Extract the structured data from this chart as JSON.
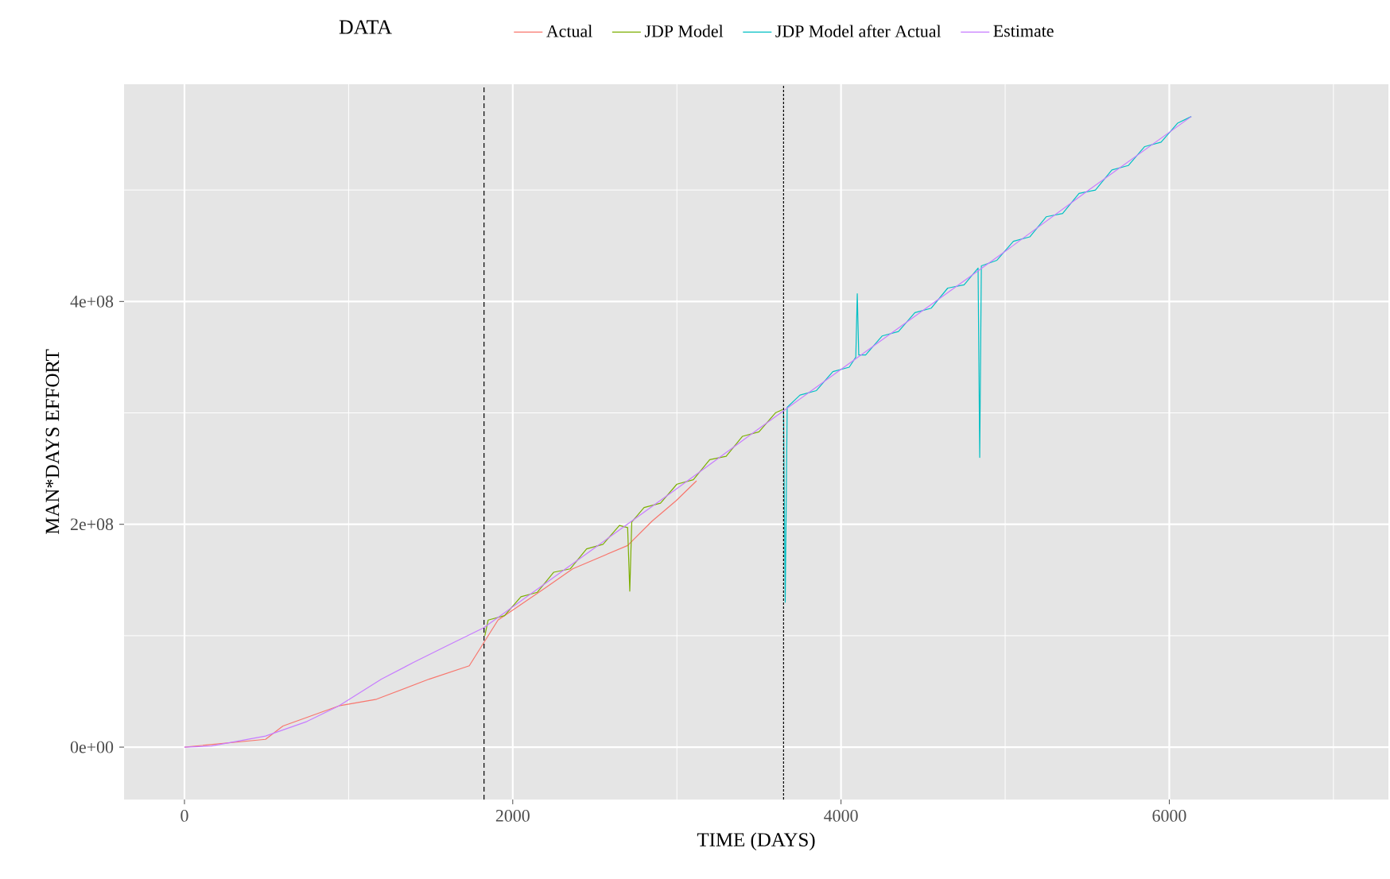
{
  "chart_data": {
    "type": "line",
    "xlabel": "TIME (DAYS)",
    "ylabel": "MAN*DAYS EFFORT",
    "legend_title": "DATA",
    "legend": "top",
    "grid": true,
    "line_style": "solid",
    "marker": "none",
    "xlim": [
      -368,
      7335
    ],
    "ylim": [
      -47000000.0,
      595000000.0
    ],
    "xticks": [
      0,
      2000,
      4000,
      6000
    ],
    "yticks": [
      {
        "value": 0,
        "label": "0e+00"
      },
      {
        "value": 200000000.0,
        "label": "2e+08"
      },
      {
        "value": 400000000.0,
        "label": "4e+08"
      }
    ],
    "ref_lines": [
      {
        "axis": "x",
        "value": 1825,
        "color": "#000000",
        "line_style": "dashed"
      },
      {
        "axis": "x",
        "value": 3650,
        "color": "#000000",
        "line_style": "dotted"
      }
    ],
    "series": [
      {
        "name": "Actual",
        "color": "#F8766D",
        "x": [
          0,
          494,
          600,
          940,
          1170,
          1490,
          1735,
          1910,
          2200,
          2365,
          2700,
          2850,
          2994,
          3120
        ],
        "values": [
          0,
          7000000.0,
          19000000.0,
          37000000.0,
          43000000.0,
          61000000.0,
          73000000.0,
          114000000.0,
          143000000.0,
          160000000.0,
          181000000.0,
          203000000.0,
          221000000.0,
          239000000.0
        ]
      },
      {
        "name": "JDP Model",
        "color": "#7CAE00",
        "x": [
          1830,
          1850,
          1950,
          2050,
          2150,
          2250,
          2350,
          2450,
          2550,
          2650,
          2700,
          2713,
          2725,
          2800,
          2900,
          3000,
          3100,
          3200,
          3300,
          3400,
          3500,
          3600,
          3645
        ],
        "values": [
          100000000.0,
          114000000.0,
          118000000.0,
          135000000.0,
          139000000.0,
          157000000.0,
          160000000.0,
          178000000.0,
          182000000.0,
          199000000.0,
          197000000.0,
          140000000.0,
          202000000.0,
          215000000.0,
          219000000.0,
          236000000.0,
          240000000.0,
          258000000.0,
          261000000.0,
          279000000.0,
          283000000.0,
          300000000.0,
          303000000.0
        ]
      },
      {
        "name": "JDP Model after Actual",
        "color": "#00BFC4",
        "x": [
          3650,
          3660,
          3672,
          3750,
          3850,
          3950,
          4050,
          4090,
          4099,
          4108,
          4150,
          4250,
          4350,
          4450,
          4550,
          4650,
          4750,
          4835,
          4845,
          4855,
          4950,
          5050,
          5150,
          5250,
          5350,
          5450,
          5550,
          5650,
          5750,
          5850,
          5950,
          6050,
          6134
        ],
        "values": [
          303000000.0,
          130000000.0,
          305000000.0,
          316000000.0,
          320000000.0,
          337000000.0,
          341000000.0,
          350000000.0,
          407000000.0,
          352000000.0,
          352000000.0,
          369000000.0,
          373000000.0,
          390000000.0,
          394000000.0,
          412000000.0,
          415000000.0,
          430000000.0,
          260000000.0,
          432000000.0,
          437000000.0,
          454000000.0,
          458000000.0,
          476000000.0,
          479000000.0,
          497000000.0,
          500000000.0,
          518000000.0,
          522000000.0,
          539000000.0,
          543000000.0,
          560000000.0,
          566000000.0
        ]
      },
      {
        "name": "Estimate",
        "color": "#C77CFF",
        "x": [
          0,
          165,
          494,
          746,
          940,
          1200,
          1395,
          1600,
          1822,
          2500,
          3000,
          3500,
          4000,
          4500,
          5000,
          5500,
          6134
        ],
        "values": [
          0,
          1000000.0,
          10000000.0,
          23000000.0,
          37000000.0,
          61000000.0,
          76000000.0,
          91000000.0,
          107000000.0,
          179000000.0,
          232000000.0,
          286000000.0,
          339000000.0,
          392000000.0,
          445000000.0,
          499000000.0,
          566000000.0
        ]
      }
    ]
  }
}
